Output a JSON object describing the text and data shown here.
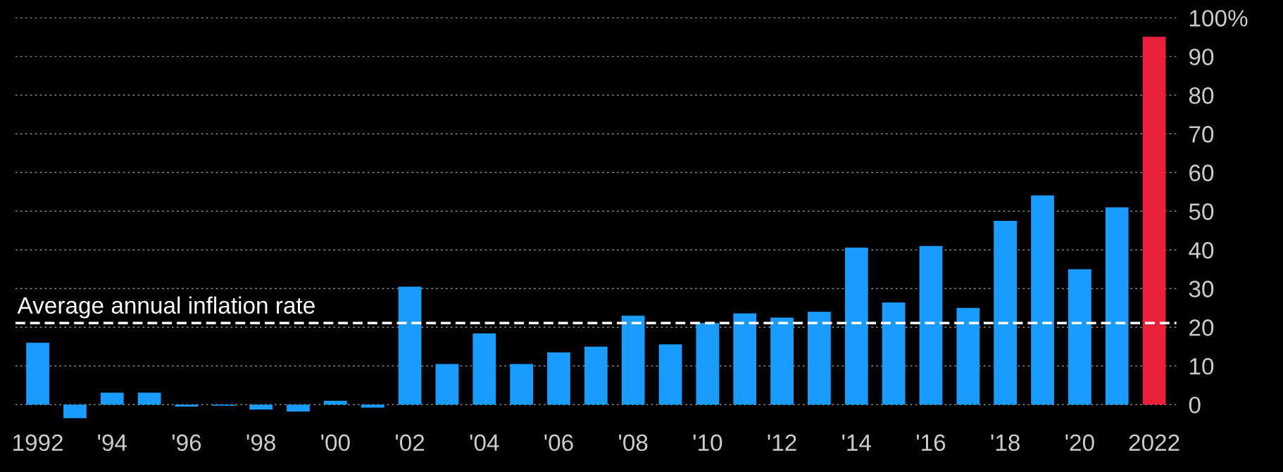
{
  "chart_data": {
    "type": "bar",
    "categories": [
      "1992",
      null,
      "'94",
      null,
      "'96",
      null,
      "'98",
      null,
      "'00",
      null,
      "'02",
      null,
      "'04",
      null,
      "'06",
      null,
      "'08",
      null,
      "'10",
      null,
      "'12",
      null,
      "'14",
      null,
      "'16",
      null,
      "'18",
      null,
      "'20",
      null,
      "2022"
    ],
    "values": [
      16.0,
      -3.5,
      3.1,
      3.1,
      -0.5,
      -0.3,
      -1.3,
      -1.8,
      1.0,
      -0.8,
      30.5,
      10.5,
      18.4,
      10.5,
      13.5,
      15.0,
      23.0,
      15.6,
      21.1,
      23.6,
      22.5,
      24.0,
      40.6,
      26.4,
      41.0,
      25.0,
      47.5,
      54.1,
      35.0,
      51.0,
      95.1
    ],
    "colors": [
      "#1a9cff",
      "#1a9cff",
      "#1a9cff",
      "#1a9cff",
      "#1a9cff",
      "#1a9cff",
      "#1a9cff",
      "#1a9cff",
      "#1a9cff",
      "#1a9cff",
      "#1a9cff",
      "#1a9cff",
      "#1a9cff",
      "#1a9cff",
      "#1a9cff",
      "#1a9cff",
      "#1a9cff",
      "#1a9cff",
      "#1a9cff",
      "#1a9cff",
      "#1a9cff",
      "#1a9cff",
      "#1a9cff",
      "#1a9cff",
      "#1a9cff",
      "#1a9cff",
      "#1a9cff",
      "#1a9cff",
      "#1a9cff",
      "#1a9cff",
      "#e8203a"
    ],
    "ylim": [
      -4,
      104
    ],
    "yticks": [
      0,
      10,
      20,
      30,
      40,
      50,
      60,
      70,
      80,
      90,
      {
        "value": 100,
        "label": "100%"
      }
    ],
    "grid": "y",
    "ref_lines": [
      {
        "axis": "y",
        "value": 21.1,
        "label": "Average annual inflation rate",
        "color": "#ffffff",
        "line_style": "dashed"
      }
    ]
  }
}
